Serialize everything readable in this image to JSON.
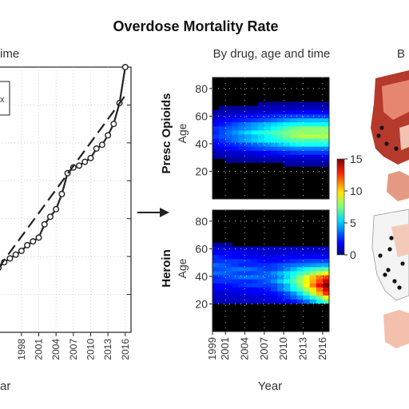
{
  "figure": {
    "title": "Overdose Mortality Rate",
    "left_subtitle": "ime",
    "middle_subtitle": "By drug, age and time",
    "right_subtitle": "B",
    "legend_box_text": "x"
  },
  "chart_data": [
    {
      "type": "line",
      "x_ticks": [
        "1998",
        "2001",
        "2004",
        "2007",
        "2010",
        "2013",
        "2016"
      ],
      "xlabel": "ar",
      "xlim": [
        1994,
        2017
      ],
      "ylim": [
        0,
        14
      ],
      "series": [
        {
          "style": "solid-with-circles",
          "x": [
            1994,
            1995,
            1996,
            1997,
            1998,
            1999,
            2000,
            2001,
            2002,
            2003,
            2004,
            2005,
            2006,
            2007,
            2008,
            2009,
            2010,
            2011,
            2012,
            2013,
            2014,
            2015,
            2016
          ],
          "y": [
            3.4,
            3.7,
            3.9,
            4.1,
            4.3,
            4.6,
            4.8,
            5.0,
            5.7,
            6.1,
            6.5,
            7.3,
            8.4,
            8.7,
            8.8,
            9.0,
            9.2,
            9.7,
            9.9,
            10.4,
            11.0,
            12.1,
            14.0
          ]
        },
        {
          "style": "dashed-trend",
          "x": [
            1994,
            2016
          ],
          "y": [
            3.4,
            12.5
          ]
        }
      ]
    },
    {
      "type": "heatmap",
      "row_label": "Presc Opioids",
      "ylabel": "Age",
      "y_ticks": [
        20,
        40,
        60,
        80
      ],
      "ylim": [
        0,
        88
      ],
      "xlim": [
        1999,
        2017
      ],
      "note": "rates near 0 black, ~4 blue/cyan, ~6 green-yellow over ages 30-60, peak yellow ~2010-2016"
    },
    {
      "type": "heatmap",
      "row_label": "Heroin",
      "ylabel": "Age",
      "y_ticks": [
        20,
        40,
        60,
        80
      ],
      "ylim": [
        0,
        88
      ],
      "xlim": [
        1999,
        2017
      ],
      "x_ticks": [
        "1999",
        "2001",
        "2004",
        "2007",
        "2010",
        "2013",
        "2016"
      ],
      "xlabel": "Year",
      "note": "low blue before 2008; rises to orange/red around ages 25-40 by 2014-2016"
    },
    {
      "type": "colorbar",
      "ticks": [
        0,
        5,
        10,
        15
      ],
      "range": [
        0,
        15
      ],
      "colormap": "jet"
    }
  ]
}
